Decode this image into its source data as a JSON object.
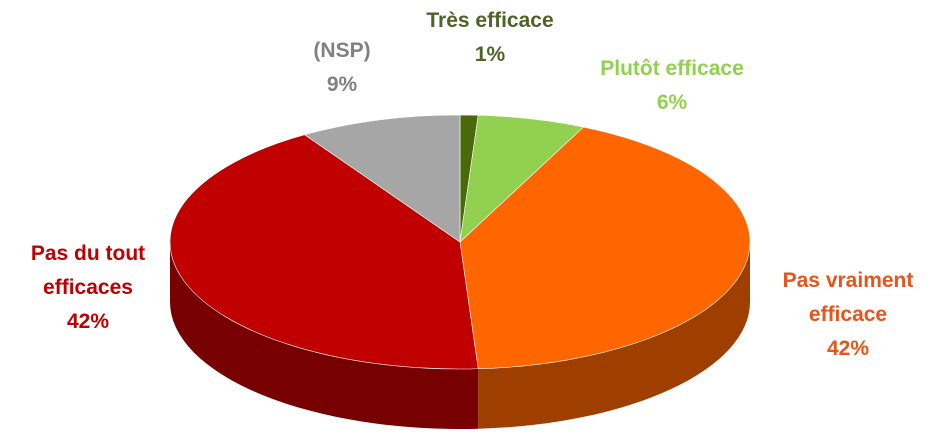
{
  "chart_data": {
    "type": "pie",
    "categories": [
      "Très efficace",
      "Plutôt efficace",
      "Pas vraiment efficace",
      "Pas du tout efficaces",
      "(NSP)"
    ],
    "values": [
      1,
      6,
      42,
      42,
      9
    ],
    "value_labels": [
      "1%",
      "6%",
      "42%",
      "42%",
      "9%"
    ],
    "colors": [
      "#4a6a0a",
      "#92d050",
      "#ff6600",
      "#c00000",
      "#a6a6a6"
    ],
    "label_colors": [
      "#4f6228",
      "#92d050",
      "#e8541a",
      "#c00000",
      "#808080"
    ]
  }
}
